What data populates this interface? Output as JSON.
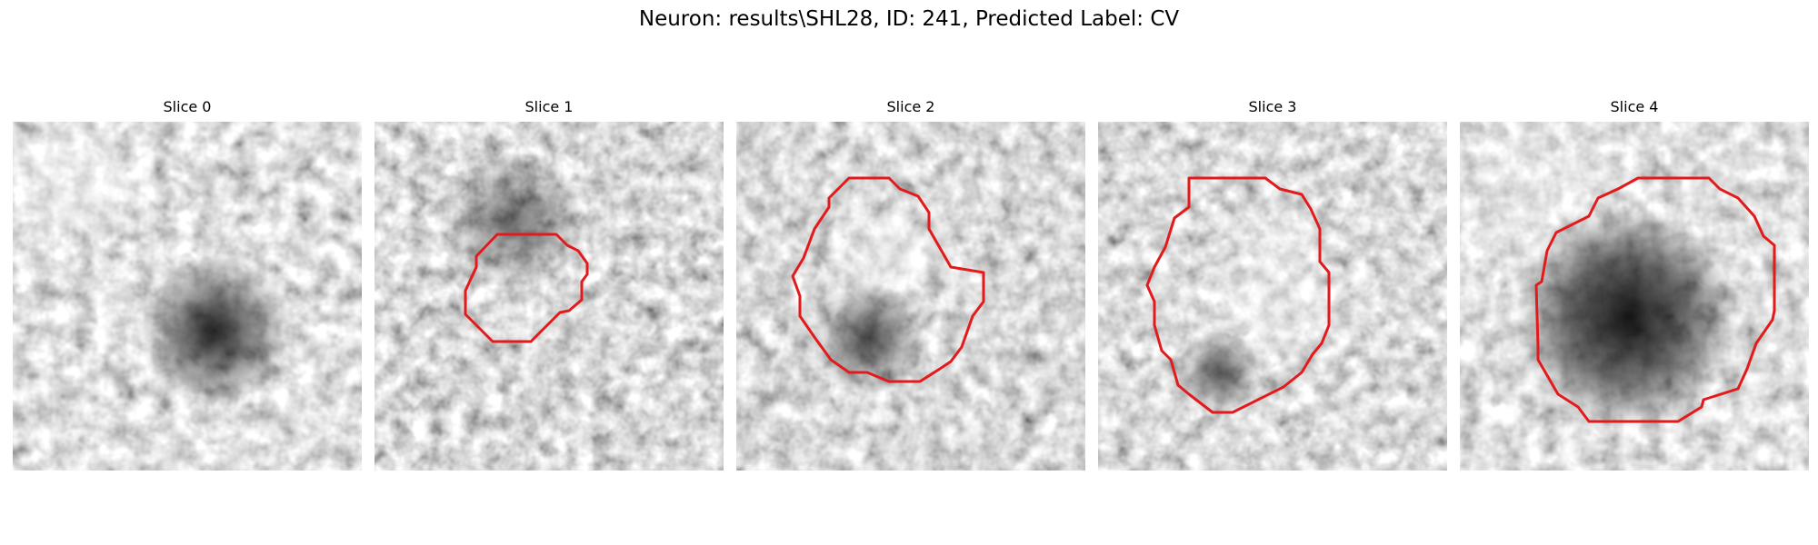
{
  "figure": {
    "title": "Neuron: results\\SHL28, ID: 241, Predicted Label: CV"
  },
  "panels": [
    {
      "title": "Slice 0",
      "has_contour": false,
      "texture": "textureA"
    },
    {
      "title": "Slice 1",
      "has_contour": true,
      "texture": "textureB"
    },
    {
      "title": "Slice 2",
      "has_contour": true,
      "texture": "textureC"
    },
    {
      "title": "Slice 3",
      "has_contour": true,
      "texture": "textureD"
    },
    {
      "title": "Slice 4",
      "has_contour": true,
      "texture": "textureE"
    }
  ],
  "colors": {
    "background": "#ffffff",
    "contour": "#e31a1c",
    "grayscale_low": "#111111",
    "grayscale_high": "#f6f6f6"
  }
}
